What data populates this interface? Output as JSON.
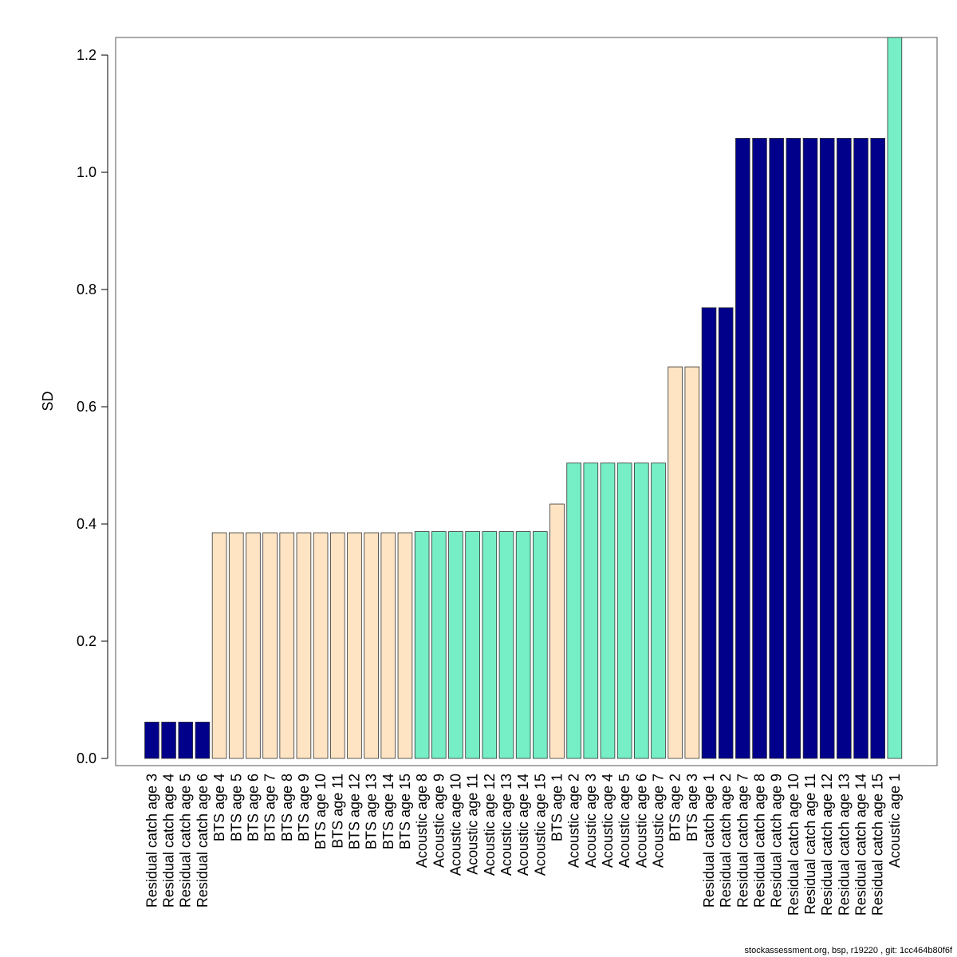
{
  "chart_data": {
    "type": "bar",
    "ylabel": "SD",
    "ylim": [
      0,
      1.23
    ],
    "yticks": [
      "0.0",
      "0.2",
      "0.4",
      "0.6",
      "0.8",
      "1.0",
      "1.2"
    ],
    "grid": false,
    "categories": [
      "Residual catch age 3",
      "Residual catch age 4",
      "Residual catch age 5",
      "Residual catch age 6",
      "BTS age 4",
      "BTS age 5",
      "BTS age 6",
      "BTS age 7",
      "BTS age 8",
      "BTS age 9",
      "BTS age 10",
      "BTS age 11",
      "BTS age 12",
      "BTS age 13",
      "BTS age 14",
      "BTS age 15",
      "Acoustic age 8",
      "Acoustic age 9",
      "Acoustic age 10",
      "Acoustic age 11",
      "Acoustic age 12",
      "Acoustic age 13",
      "Acoustic age 14",
      "Acoustic age 15",
      "BTS age 1",
      "Acoustic age 2",
      "Acoustic age 3",
      "Acoustic age 4",
      "Acoustic age 5",
      "Acoustic age 6",
      "Acoustic age 7",
      "BTS age 2",
      "BTS age 3",
      "Residual catch age 1",
      "Residual catch age 2",
      "Residual catch age 7",
      "Residual catch age 8",
      "Residual catch age 9",
      "Residual catch age 10",
      "Residual catch age 11",
      "Residual catch age 12",
      "Residual catch age 13",
      "Residual catch age 14",
      "Residual catch age 15",
      "Acoustic age 1"
    ],
    "values": [
      0.062,
      0.062,
      0.062,
      0.062,
      0.385,
      0.385,
      0.385,
      0.385,
      0.385,
      0.385,
      0.385,
      0.385,
      0.385,
      0.385,
      0.385,
      0.385,
      0.387,
      0.387,
      0.387,
      0.387,
      0.387,
      0.387,
      0.387,
      0.387,
      0.434,
      0.504,
      0.504,
      0.504,
      0.504,
      0.504,
      0.504,
      0.668,
      0.668,
      0.769,
      0.769,
      1.058,
      1.058,
      1.058,
      1.058,
      1.058,
      1.058,
      1.058,
      1.058,
      1.058,
      1.23
    ],
    "colors": [
      "#00008B",
      "#00008B",
      "#00008B",
      "#00008B",
      "#FFE4C4",
      "#FFE4C4",
      "#FFE4C4",
      "#FFE4C4",
      "#FFE4C4",
      "#FFE4C4",
      "#FFE4C4",
      "#FFE4C4",
      "#FFE4C4",
      "#FFE4C4",
      "#FFE4C4",
      "#FFE4C4",
      "#76EEC6",
      "#76EEC6",
      "#76EEC6",
      "#76EEC6",
      "#76EEC6",
      "#76EEC6",
      "#76EEC6",
      "#76EEC6",
      "#FFE4C4",
      "#76EEC6",
      "#76EEC6",
      "#76EEC6",
      "#76EEC6",
      "#76EEC6",
      "#76EEC6",
      "#FFE4C4",
      "#FFE4C4",
      "#00008B",
      "#00008B",
      "#00008B",
      "#00008B",
      "#00008B",
      "#00008B",
      "#00008B",
      "#00008B",
      "#00008B",
      "#00008B",
      "#00008B",
      "#76EEC6"
    ]
  },
  "footer": "stockassessment.org, bsp, r19220 , git: 1cc464b80f6f"
}
